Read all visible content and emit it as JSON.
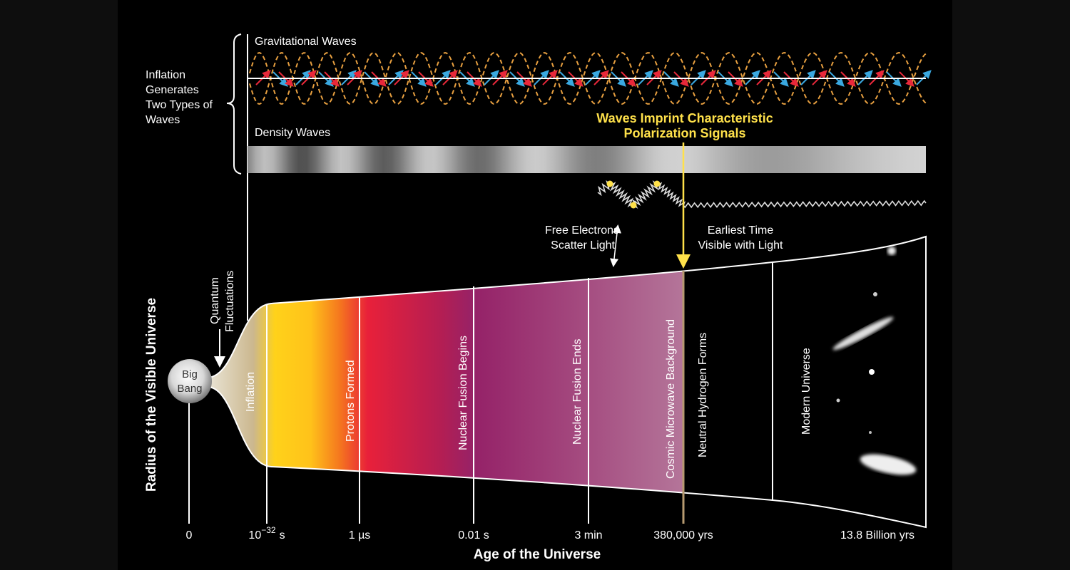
{
  "waves": {
    "group_label": [
      "Inflation",
      "Generates",
      "Two Types of",
      "Waves"
    ],
    "gravitational": "Gravitational Waves",
    "density": "Density Waves",
    "imprint": [
      "Waves Imprint Characteristic",
      "Polarization Signals"
    ]
  },
  "annotations": {
    "scatter": [
      "Free Electrons",
      "Scatter Light"
    ],
    "earliest": [
      "Earliest Time",
      "Visible with Light"
    ],
    "quantum": [
      "Quantum",
      "Fluctuations"
    ],
    "big_bang": [
      "Big",
      "Bang"
    ]
  },
  "epochs": [
    "Inflation",
    "Protons Formed",
    "Nuclear Fusion Begins",
    "Nuclear Fusion Ends",
    "Cosmic Microwave Background",
    "Neutral Hydrogen Forms",
    "Modern Universe"
  ],
  "axes": {
    "y_label": "Radius of the Visible Universe",
    "x_label": "Age of the Universe",
    "ticks": [
      "0",
      {
        "base": "10",
        "exponent": "−32",
        "unit": "s"
      },
      "1 µs",
      "0.01 s",
      "3 min",
      "380,000 yrs",
      "13.8 Billion yrs"
    ]
  }
}
